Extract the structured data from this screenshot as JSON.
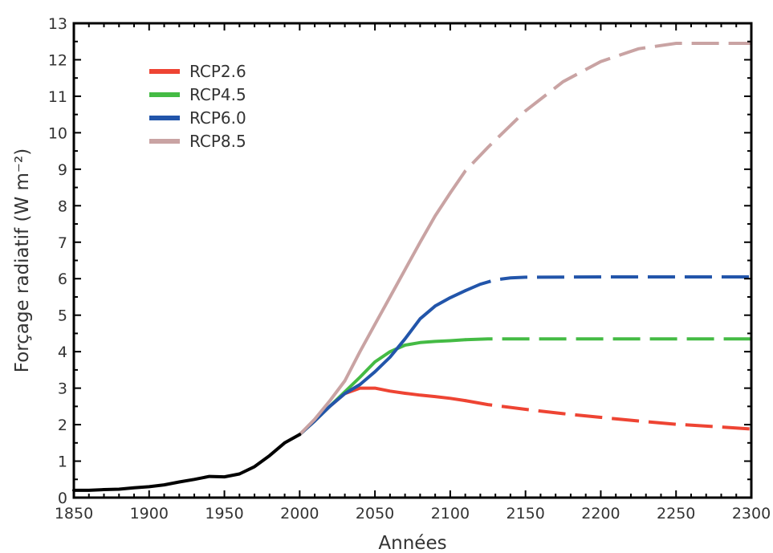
{
  "chart_data": {
    "type": "line",
    "xlabel": "Années",
    "ylabel": "Forçage radiatif (W m⁻²)",
    "xlim": [
      1850,
      2300
    ],
    "ylim": [
      0,
      13
    ],
    "x_ticks": [
      "1850",
      "1900",
      "1950",
      "2000",
      "2050",
      "2100",
      "2150",
      "2200",
      "2250",
      "2300"
    ],
    "y_ticks": [
      "0",
      "1",
      "2",
      "3",
      "4",
      "5",
      "6",
      "7",
      "8",
      "9",
      "10",
      "11",
      "12",
      "13"
    ],
    "grid": false,
    "legend_position": "top-left",
    "historical": {
      "color": "#000000",
      "x": [
        1850,
        1860,
        1870,
        1880,
        1890,
        1900,
        1910,
        1920,
        1930,
        1940,
        1950,
        1960,
        1970,
        1980,
        1990,
        2000
      ],
      "y": [
        0.2,
        0.2,
        0.22,
        0.23,
        0.27,
        0.3,
        0.35,
        0.43,
        0.5,
        0.58,
        0.57,
        0.65,
        0.85,
        1.15,
        1.5,
        1.73
      ]
    },
    "series": [
      {
        "name": "RCP2.6",
        "color": "#ee4433",
        "x": [
          2000,
          2010,
          2020,
          2030,
          2040,
          2050,
          2060,
          2070,
          2080,
          2090,
          2100,
          2110,
          2125,
          2150,
          2175,
          2200,
          2225,
          2250,
          2275,
          2300
        ],
        "y": [
          1.73,
          2.1,
          2.5,
          2.85,
          3.0,
          3.0,
          2.92,
          2.86,
          2.81,
          2.77,
          2.72,
          2.66,
          2.55,
          2.42,
          2.3,
          2.2,
          2.1,
          2.01,
          1.95,
          1.88
        ],
        "dash_from": 2110
      },
      {
        "name": "RCP4.5",
        "color": "#44bb44",
        "x": [
          2000,
          2010,
          2020,
          2030,
          2040,
          2050,
          2060,
          2070,
          2080,
          2090,
          2100,
          2110,
          2125,
          2150,
          2200,
          2250,
          2300
        ],
        "y": [
          1.73,
          2.1,
          2.5,
          2.9,
          3.3,
          3.72,
          4.0,
          4.18,
          4.25,
          4.28,
          4.3,
          4.33,
          4.35,
          4.35,
          4.35,
          4.35,
          4.35
        ],
        "dash_from": 2110
      },
      {
        "name": "RCP6.0",
        "color": "#2255aa",
        "x": [
          2000,
          2010,
          2020,
          2030,
          2040,
          2050,
          2060,
          2070,
          2080,
          2090,
          2100,
          2110,
          2120,
          2130,
          2140,
          2150,
          2200,
          2250,
          2300
        ],
        "y": [
          1.73,
          2.1,
          2.5,
          2.85,
          3.1,
          3.45,
          3.85,
          4.35,
          4.9,
          5.25,
          5.48,
          5.67,
          5.85,
          5.97,
          6.02,
          6.04,
          6.05,
          6.05,
          6.05
        ],
        "dash_from": 2110
      },
      {
        "name": "RCP8.5",
        "color": "#c9a3a3",
        "x": [
          2000,
          2010,
          2020,
          2030,
          2040,
          2050,
          2060,
          2070,
          2080,
          2090,
          2100,
          2110,
          2125,
          2150,
          2175,
          2200,
          2225,
          2250,
          2275,
          2300
        ],
        "y": [
          1.73,
          2.15,
          2.65,
          3.2,
          4.0,
          4.75,
          5.5,
          6.25,
          7.0,
          7.72,
          8.35,
          8.95,
          9.6,
          10.6,
          11.4,
          11.95,
          12.3,
          12.45,
          12.45,
          12.45
        ],
        "dash_from": 2100
      }
    ]
  }
}
